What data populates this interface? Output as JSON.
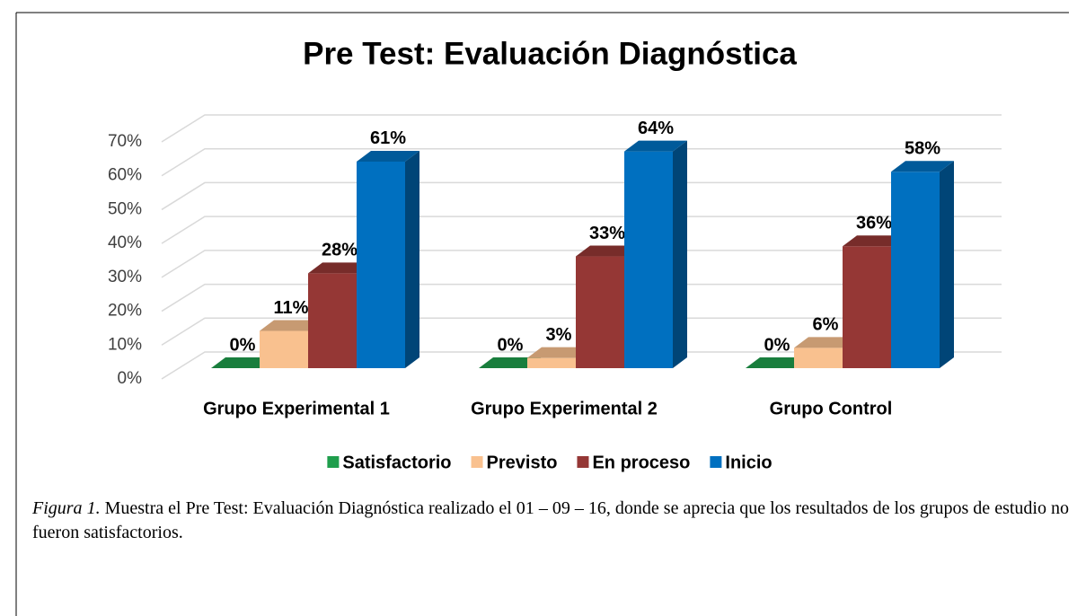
{
  "chart_data": {
    "type": "bar3d",
    "title": "Pre Test: Evaluación Diagnóstica",
    "categories": [
      "Grupo Experimental 1",
      "Grupo Experimental 2",
      "Grupo Control"
    ],
    "series": [
      {
        "name": "Satisfactorio",
        "color": "#1f9e4c",
        "values": [
          0,
          0,
          0
        ],
        "value_labels": [
          "0%",
          "0%",
          "0%"
        ]
      },
      {
        "name": "Previsto",
        "color": "#f9c18f",
        "values": [
          11,
          3,
          6
        ],
        "value_labels": [
          "11%",
          "3%",
          "6%"
        ]
      },
      {
        "name": "En proceso",
        "color": "#953735",
        "values": [
          28,
          33,
          36
        ],
        "value_labels": [
          "28%",
          "33%",
          "36%"
        ]
      },
      {
        "name": "Inicio",
        "color": "#0070c0",
        "values": [
          61,
          64,
          58
        ],
        "value_labels": [
          "61%",
          "64%",
          "58%"
        ]
      }
    ],
    "ylim": [
      0,
      70
    ],
    "yticks": [
      {
        "value": 0,
        "label": "0%"
      },
      {
        "value": 10,
        "label": "10%"
      },
      {
        "value": 20,
        "label": "20%"
      },
      {
        "value": 30,
        "label": "30%"
      },
      {
        "value": 40,
        "label": "40%"
      },
      {
        "value": 50,
        "label": "50%"
      },
      {
        "value": 60,
        "label": "60%"
      },
      {
        "value": 70,
        "label": "70%"
      }
    ],
    "grid": true,
    "legend": "bottom"
  },
  "caption": {
    "label": "Figura 1.",
    "text": " Muestra el Pre Test: Evaluación Diagnóstica realizado el 01 – 09 – 16, donde se aprecia que los resultados de los grupos de estudio no fueron satisfactorios."
  }
}
